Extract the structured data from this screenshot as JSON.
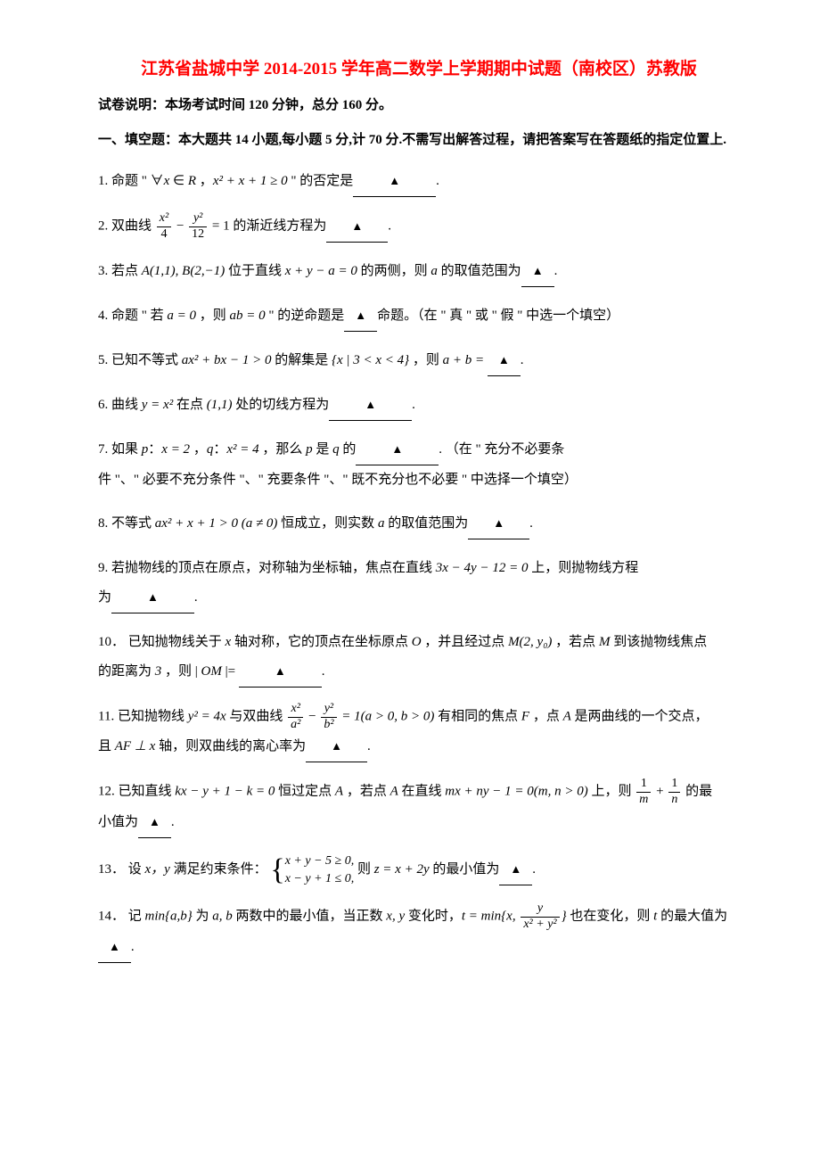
{
  "title": "江苏省盐城中学 2014-2015 学年高二数学上学期期中试题（南校区）苏教版",
  "instructions": "试卷说明：本场考试时间 120 分钟，总分 160 分。",
  "section_header": "一、填空题：本大题共 14 小题,每小题 5 分,计 70 分.不需写出解答过程，请把答案写在答题纸的指定位置上.",
  "colors": {
    "title": "#ff0000",
    "text": "#000000",
    "background": "#ffffff"
  },
  "typography": {
    "title_fontsize": 19,
    "body_fontsize": 15,
    "font_family": "SimSun"
  },
  "q1": {
    "pre": "1. 命题 \" ∀",
    "var1": "x",
    "mid1": " ∈ ",
    "var2": "R",
    "mid2": " ，",
    "expr": "x² + x + 1 ≥ 0",
    "post": " \" 的否定是",
    "end": "."
  },
  "q2": {
    "pre": "2. 双曲线 ",
    "frac1_num": "x²",
    "frac1_den": "4",
    "minus": " − ",
    "frac2_num": "y²",
    "frac2_den": "12",
    "eq": " = 1 的渐近线方程为",
    "end": "."
  },
  "q3": {
    "pre": "3. 若点 ",
    "pts": "A(1,1), B(2,−1)",
    "mid": " 位于直线 ",
    "line": "x + y − a = 0",
    "mid2": " 的两侧，则 ",
    "var": "a",
    "post": " 的取值范围为",
    "end": "."
  },
  "q4": {
    "pre": "4. 命题 \" 若 ",
    "cond": "a = 0",
    "mid": " ，则 ",
    "res": "ab = 0",
    "post": " \" 的逆命题是",
    "end": "命题。（在 \" 真 \" 或 \" 假 \" 中选一个填空）"
  },
  "q5": {
    "pre": "5. 已知不等式 ",
    "ineq": "ax² + bx − 1 > 0",
    "mid": " 的解集是 ",
    "set": "{x | 3 < x < 4}",
    "post": " ，则 ",
    "expr": "a + b =",
    "end": "."
  },
  "q6": {
    "pre": "6. 曲线 ",
    "curve": "y = x²",
    "mid": " 在点 ",
    "pt": "(1,1)",
    "post": " 处的切线方程为",
    "end": "."
  },
  "q7": {
    "pre": "7. 如果 ",
    "p": "p",
    "colon1": "：",
    "pval": "x = 2",
    "comma": " ，",
    "q": "q",
    "colon2": "：",
    "qval": "x² = 4",
    "mid": " ，那么 ",
    "p2": "p",
    "mid2": " 是 ",
    "q2": "q",
    "post": " 的",
    "end": ". （在 \" 充分不必要条",
    "line2": "件 \"、\" 必要不充分条件 \"、\" 充要条件 \"、\" 既不充分也不必要 \" 中选择一个填空）"
  },
  "q8": {
    "pre": "8. 不等式 ",
    "ineq": "ax² + x + 1 > 0 (a ≠ 0)",
    "mid": " 恒成立，则实数 ",
    "var": "a",
    "post": " 的取值范围为",
    "end": "."
  },
  "q9": {
    "pre": "9. 若抛物线的顶点在原点，对称轴为坐标轴，焦点在直线 ",
    "line": "3x − 4y − 12 = 0",
    "post": " 上，则抛物线方程",
    "line2_pre": "为",
    "end": "."
  },
  "q10": {
    "pre": "10． 已知抛物线关于 ",
    "xaxis": "x",
    "mid1": " 轴对称，它的顶点在坐标原点 ",
    "O": "O",
    "mid2": " ，并且经过点 ",
    "M": "M(2, y₀)",
    "mid3": " ，若点 ",
    "M2": "M",
    "post": " 到该抛物线焦点",
    "line2_pre": "的距离为 ",
    "dist": "3",
    "line2_mid": " ，则 | ",
    "OM": "OM",
    "line2_post": " |= ",
    "end": "."
  },
  "q11": {
    "pre": "11. 已知抛物线 ",
    "para": "y² = 4x",
    "mid1": " 与双曲线 ",
    "frac1_num": "x²",
    "frac1_den": "a²",
    "minus": " − ",
    "frac2_num": "y²",
    "frac2_den": "b²",
    "eq": " = 1(a > 0, b > 0)",
    "mid2": " 有相同的焦点 ",
    "F": "F",
    "mid3": " ，点 ",
    "A": "A",
    "post": " 是两曲线的一个交点，",
    "line2_pre": "且 ",
    "perp": "AF ⊥ x",
    "line2_post": " 轴，则双曲线的离心率为",
    "end": "."
  },
  "q12": {
    "pre": "12. 已知直线 ",
    "line": "kx − y + 1 − k = 0",
    "mid1": " 恒过定点 ",
    "A": "A",
    "mid2": " ，若点 ",
    "A2": "A",
    "mid3": " 在直线 ",
    "line2": "mx + ny − 1 = 0(m, n > 0)",
    "mid4": " 上，则 ",
    "frac1_num": "1",
    "frac1_den": "m",
    "plus": " + ",
    "frac2_num": "1",
    "frac2_den": "n",
    "post": " 的最",
    "row2_pre": "小值为",
    "end": "."
  },
  "q13": {
    "pre": "13． 设 ",
    "xy": "x，y",
    "mid1": " 满足约束条件：",
    "c1": "x + y − 5 ≥ 0,",
    "c2": "x − y + 1 ≤ 0,",
    "mid2": " 则 ",
    "z": "z = x + 2y",
    "post": " 的最小值为",
    "end": "."
  },
  "q14": {
    "pre": "14． 记 ",
    "min1": "min{a,b}",
    "mid1": " 为 ",
    "ab": "a, b",
    "mid2": " 两数中的最小值，当正数 ",
    "xy": "x, y",
    "mid3": " 变化时，",
    "t": "t = min{x, ",
    "frac_num": "y",
    "frac_den": "x² + y²",
    "mid4": "}",
    "mid5": " 也在变化，则 ",
    "tvar": "t",
    "post": " 的最大值为",
    "end": "."
  }
}
